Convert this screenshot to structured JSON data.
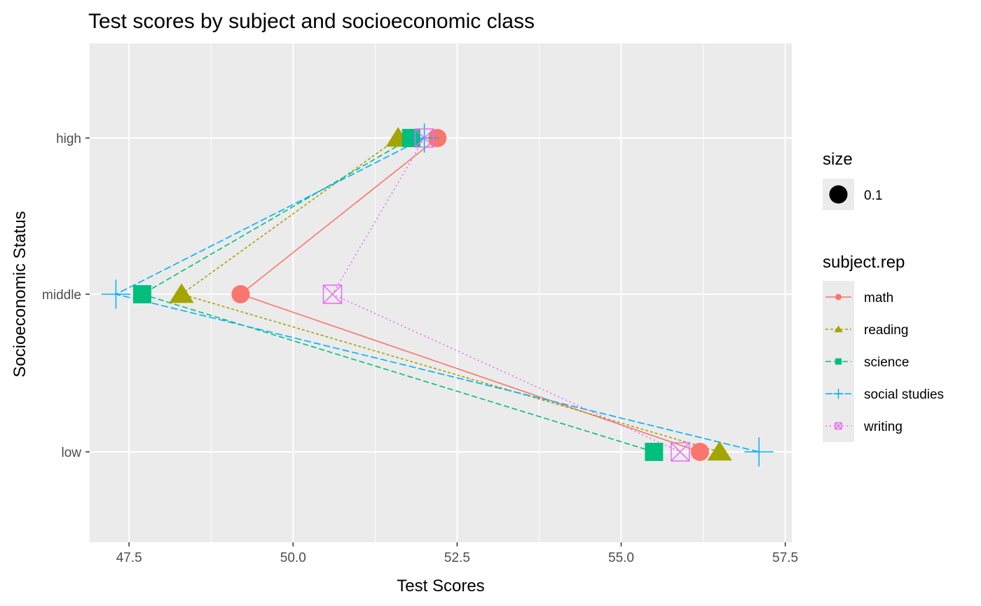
{
  "chart_data": {
    "type": "line",
    "title": "Test scores by subject and socioeconomic class",
    "xlabel": "Test Scores",
    "ylabel": "Socioeconomic Status",
    "xlim": [
      46.9,
      57.6
    ],
    "x_ticks": [
      47.5,
      50.0,
      52.5,
      55.0,
      57.5
    ],
    "x_tick_labels": [
      "47.5",
      "50.0",
      "52.5",
      "55.0",
      "57.5"
    ],
    "categories": [
      "low",
      "middle",
      "high"
    ],
    "grid": true,
    "legend_position": "right",
    "size_legend": {
      "title": "size",
      "label": "0.1"
    },
    "color_legend_title": "subject.rep",
    "series": [
      {
        "name": "math",
        "color": "#F8766D",
        "shape": "circle",
        "linetype": "solid",
        "values": [
          {
            "y": "high",
            "x": 52.2
          },
          {
            "y": "middle",
            "x": 49.2
          },
          {
            "y": "low",
            "x": 56.2
          }
        ]
      },
      {
        "name": "reading",
        "color": "#A3A500",
        "shape": "triangle",
        "linetype": "dashed-short",
        "values": [
          {
            "y": "high",
            "x": 51.6
          },
          {
            "y": "middle",
            "x": 48.3
          },
          {
            "y": "low",
            "x": 56.5
          }
        ]
      },
      {
        "name": "science",
        "color": "#00BF7D",
        "shape": "square",
        "linetype": "dashed",
        "values": [
          {
            "y": "high",
            "x": 51.8
          },
          {
            "y": "middle",
            "x": 47.7
          },
          {
            "y": "low",
            "x": 55.5
          }
        ]
      },
      {
        "name": "social studies",
        "color": "#00B0F6",
        "shape": "plus",
        "linetype": "dashed-long",
        "values": [
          {
            "y": "high",
            "x": 52.0
          },
          {
            "y": "middle",
            "x": 47.3
          },
          {
            "y": "low",
            "x": 57.1
          }
        ]
      },
      {
        "name": "writing",
        "color": "#E76BF3",
        "shape": "square-x",
        "linetype": "dotted",
        "values": [
          {
            "y": "high",
            "x": 52.0
          },
          {
            "y": "middle",
            "x": 50.6
          },
          {
            "y": "low",
            "x": 55.9
          }
        ]
      }
    ]
  }
}
